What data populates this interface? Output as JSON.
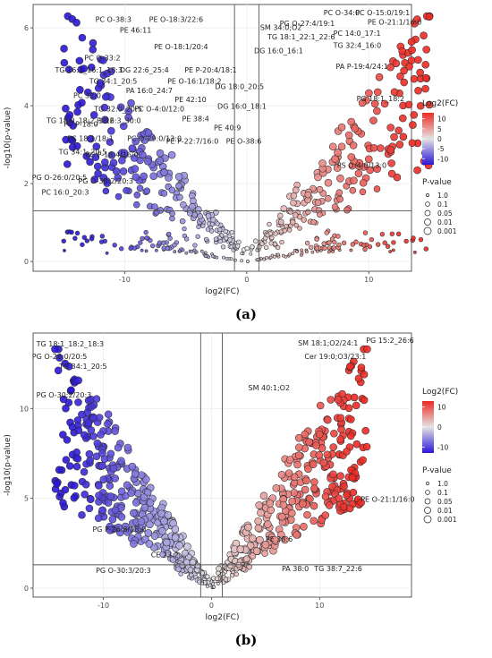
{
  "chart_data": [
    {
      "type": "scatter",
      "panel_label": "(a)",
      "xlabel": "log2(FC)",
      "ylabel": "-log10(p-value)",
      "xlim": [
        -17.5,
        13.5
      ],
      "ylim": [
        -0.25,
        6.6
      ],
      "x_ticks": [
        -10,
        0,
        10
      ],
      "y_ticks": [
        0,
        2,
        4,
        6
      ],
      "vlines": [
        -1,
        1
      ],
      "hline": 1.3,
      "color_legend": {
        "title": "Log2(FC)",
        "ticks": [
          10,
          5,
          0,
          -5,
          -10
        ],
        "low": "#2a16d8",
        "mid": "#e4e4e4",
        "high": "#ee2a24"
      },
      "size_legend": {
        "title": "P-value",
        "entries": [
          "1.0",
          "0.1",
          "0.05",
          "0.01",
          "0.001"
        ]
      },
      "labels": [
        {
          "text": "PC O-38:3",
          "x": -12.4,
          "y": 6.15
        },
        {
          "text": "PE O-18:3/22:6",
          "x": -8.0,
          "y": 6.15
        },
        {
          "text": "PE 46:11",
          "x": -10.4,
          "y": 5.88
        },
        {
          "text": "PE O-18:1/20:4",
          "x": -7.6,
          "y": 5.45
        },
        {
          "text": "PC O-33:2",
          "x": -13.3,
          "y": 5.16
        },
        {
          "text": "TG 16:1_16:1_18:3",
          "x": -15.7,
          "y": 4.85
        },
        {
          "text": "DG 22:6_25:4",
          "x": -10.4,
          "y": 4.85
        },
        {
          "text": "PE P-20:4/18:1",
          "x": -5.1,
          "y": 4.85
        },
        {
          "text": "TG 34:1_20:5",
          "x": -12.9,
          "y": 4.57
        },
        {
          "text": "PE O-16:1/18:2",
          "x": -6.5,
          "y": 4.57
        },
        {
          "text": "PA 16:0_24:7",
          "x": -9.9,
          "y": 4.32
        },
        {
          "text": "DG 18:0_20:5",
          "x": -2.6,
          "y": 4.43
        },
        {
          "text": "PC 32:0",
          "x": -14.2,
          "y": 4.2
        },
        {
          "text": "PE 42:10",
          "x": -5.9,
          "y": 4.1
        },
        {
          "text": "TG 32:0_20:5",
          "x": -12.5,
          "y": 3.85
        },
        {
          "text": "PC O-4:0/12:0",
          "x": -9.2,
          "y": 3.85
        },
        {
          "text": "DG 16:0_18:1",
          "x": -2.4,
          "y": 3.92
        },
        {
          "text": "TG 18:0_18:2_18:2",
          "x": -16.4,
          "y": 3.55
        },
        {
          "text": "PI 16:3_30:0",
          "x": -12.3,
          "y": 3.55
        },
        {
          "text": "PE 38:4",
          "x": -5.3,
          "y": 3.6
        },
        {
          "text": "PE 40:9",
          "x": -2.7,
          "y": 3.37
        },
        {
          "text": "PC O-29:0/13:0",
          "x": -9.8,
          "y": 3.1
        },
        {
          "text": "PE P-22:7/16:0",
          "x": -6.6,
          "y": 3.02
        },
        {
          "text": "PE O-38:6",
          "x": -1.7,
          "y": 3.02
        },
        {
          "text": "PC P-18:0",
          "x": -15.0,
          "y": 3.46
        },
        {
          "text": "PC 18:1/18:1",
          "x": -14.7,
          "y": 3.1
        },
        {
          "text": "TG 34:1_20:5",
          "x": -15.4,
          "y": 2.75
        },
        {
          "text": "PC P-18:4/16:0",
          "x": -13.2,
          "y": 2.68
        },
        {
          "text": "PG O-26:0/20:5",
          "x": -17.6,
          "y": 2.1
        },
        {
          "text": "PG O-30:2/20:3",
          "x": -13.8,
          "y": 2.0
        },
        {
          "text": "PC 16:0_20:3",
          "x": -16.8,
          "y": 1.72
        },
        {
          "text": "SM 34:0;O2",
          "x": 1.1,
          "y": 5.95
        },
        {
          "text": "PG O-27:4/19:1",
          "x": 2.7,
          "y": 6.05
        },
        {
          "text": "PC O-34:0",
          "x": 6.3,
          "y": 6.32
        },
        {
          "text": "PC O-15:0/19:1",
          "x": 8.9,
          "y": 6.32
        },
        {
          "text": "PE O-21:1/16:0",
          "x": 9.9,
          "y": 6.08
        },
        {
          "text": "TG 18:1_22:1_22:6",
          "x": 1.7,
          "y": 5.7
        },
        {
          "text": "PC 14:0_17:1",
          "x": 7.1,
          "y": 5.8
        },
        {
          "text": "TG 32:4_16:0",
          "x": 7.1,
          "y": 5.48
        },
        {
          "text": "DG 16:0_16:1",
          "x": 0.6,
          "y": 5.35
        },
        {
          "text": "PA P-19:4/24:1",
          "x": 7.3,
          "y": 4.95
        },
        {
          "text": "PG 18:1_18:2",
          "x": 9.0,
          "y": 4.12
        },
        {
          "text": "PS O-4:0/13:0",
          "x": 7.4,
          "y": 2.4
        }
      ]
    },
    {
      "type": "scatter",
      "panel_label": "(b)",
      "xlabel": "log2(FC)",
      "ylabel": "-log10(p-value)",
      "xlim": [
        -16.5,
        18.5
      ],
      "ylim": [
        -0.5,
        14.2
      ],
      "x_ticks": [
        -10,
        0,
        10
      ],
      "y_ticks": [
        0,
        5,
        10
      ],
      "vlines": [
        -1,
        1
      ],
      "hline": 1.3,
      "color_legend": {
        "title": "Log2(FC)",
        "ticks": [
          10,
          0,
          -10
        ],
        "low": "#2a16d8",
        "mid": "#e4e4e4",
        "high": "#ee2a24"
      },
      "size_legend": {
        "title": "P-value",
        "entries": [
          "1.0",
          "0.1",
          "0.05",
          "0.01",
          "0.001"
        ]
      },
      "labels": [
        {
          "text": "TG 18:1_18:2_18:3",
          "x": -16.2,
          "y": 13.45
        },
        {
          "text": "PG O-26:0/20:5",
          "x": -16.6,
          "y": 12.75
        },
        {
          "text": "TG 34:1_20:5",
          "x": -14.1,
          "y": 12.2
        },
        {
          "text": "PG O-30:2/20:3",
          "x": -16.2,
          "y": 10.6
        },
        {
          "text": "SM 18:1;O2/24:1",
          "x": 8.0,
          "y": 13.5
        },
        {
          "text": "PG 15:2_26:6",
          "x": 14.3,
          "y": 13.65
        },
        {
          "text": "Cer 19:0;O3/23:1",
          "x": 8.6,
          "y": 12.75
        },
        {
          "text": "SM 40:1;O2",
          "x": 3.4,
          "y": 11.0
        },
        {
          "text": "PE O-21:1/16:0",
          "x": 13.8,
          "y": 4.8
        },
        {
          "text": "PG P-26:8/18:0",
          "x": -11.0,
          "y": 3.15
        },
        {
          "text": "PE 38:6",
          "x": 5.0,
          "y": 2.58
        },
        {
          "text": "CE 23:2",
          "x": -5.6,
          "y": 1.72
        },
        {
          "text": "PG O-30:3/20:3",
          "x": -10.7,
          "y": 0.85
        },
        {
          "text": "PA 38:0",
          "x": 6.5,
          "y": 0.95
        },
        {
          "text": "TG 38:7_22:6",
          "x": 9.5,
          "y": 0.95
        }
      ]
    }
  ]
}
